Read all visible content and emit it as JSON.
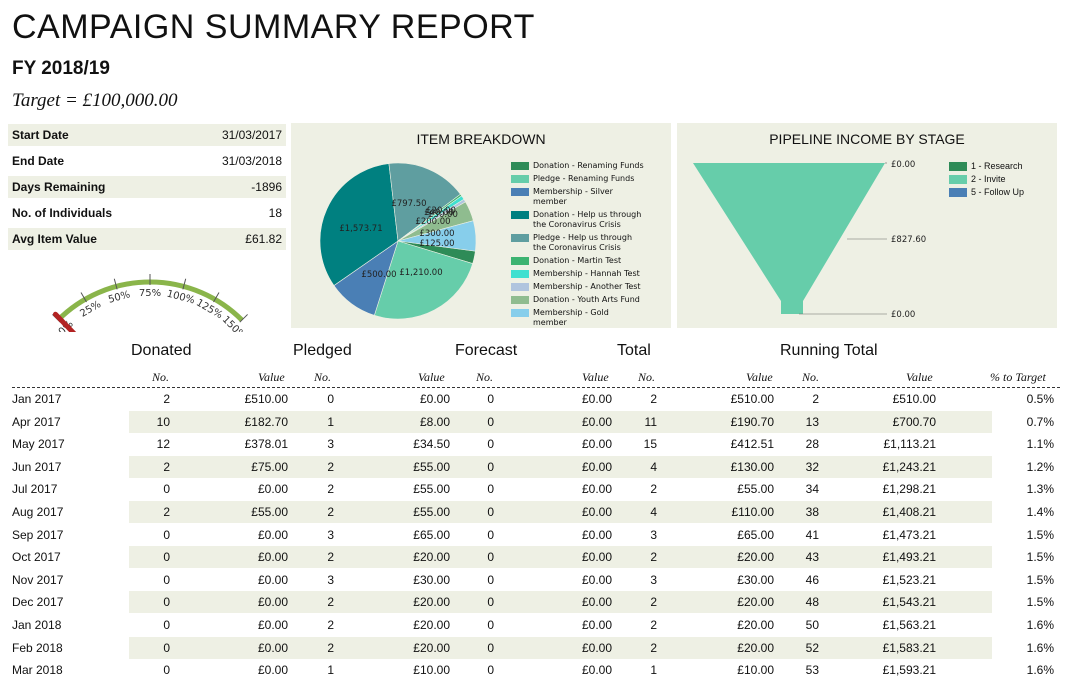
{
  "report": {
    "title": "CAMPAIGN SUMMARY REPORT",
    "fiscal_year": "FY 2018/19",
    "target": "Target = £100,000.00"
  },
  "stats": [
    {
      "label": "Start Date",
      "value": "31/03/2017"
    },
    {
      "label": "End Date",
      "value": "31/03/2018"
    },
    {
      "label": "Days Remaining",
      "value": "-1896"
    },
    {
      "label": "No. of Individuals",
      "value": "18"
    },
    {
      "label": "Avg Item Value",
      "value": "£61.82"
    }
  ],
  "gauge": {
    "ticks": [
      "0%",
      "25%",
      "50%",
      "75%",
      "100%",
      "125%",
      "150%"
    ],
    "value_percent": 1.6,
    "arc_color": "#8ab54a",
    "needle_color": "#b22222"
  },
  "item_breakdown": {
    "title": "ITEM BREAKDOWN",
    "chart_data": {
      "type": "pie",
      "slices": [
        {
          "label": "Donation - Renaming Funds",
          "value": 125.0,
          "color": "#2e8b57"
        },
        {
          "label": "Pledge - Renaming Funds",
          "value": 1210.0,
          "color": "#66cdaa"
        },
        {
          "label": "Membership - Silver member",
          "value": 500.0,
          "color": "#4a7fb5"
        },
        {
          "label": "Donation - Help us through the Coronavirus Crisis",
          "value": 1573.71,
          "color": "#008080"
        },
        {
          "label": "Pledge - Help us through the Coronavirus Crisis",
          "value": 797.5,
          "color": "#5f9ea0"
        },
        {
          "label": "Donation - Martin Test",
          "value": 20.0,
          "color": "#3cb371"
        },
        {
          "label": "Membership - Hannah Test",
          "value": 40.0,
          "color": "#40e0d0"
        },
        {
          "label": "Membership - Another Test",
          "value": 30.0,
          "color": "#b0c4de"
        },
        {
          "label": "Donation - Youth Arts Fund",
          "value": 200.0,
          "color": "#8fbc8f"
        },
        {
          "label": "Membership - Gold member",
          "value": 300.0,
          "color": "#87ceeb"
        }
      ],
      "data_labels": [
        "£1,573.71",
        "£797.50",
        "£40.00",
        "£20.00",
        "£30.00",
        "£200.00",
        "£300.00",
        "£125.00",
        "£1,210.00",
        "£500.00"
      ]
    }
  },
  "pipeline": {
    "title": "PIPELINE INCOME BY STAGE",
    "chart_data": {
      "type": "funnel",
      "stages": [
        {
          "label": "1 - Research",
          "value": 0.0,
          "display": "£0.00",
          "color": "#2e8b57"
        },
        {
          "label": "2 - Invite",
          "value": 827.6,
          "display": "£827.60",
          "color": "#66cdaa"
        },
        {
          "label": "5 - Follow Up",
          "value": 0.0,
          "display": "£0.00",
          "color": "#4a7fb5"
        }
      ]
    }
  },
  "table": {
    "groups": [
      "Donated",
      "Pledged",
      "Forecast",
      "Total",
      "Running Total"
    ],
    "subheaders": [
      "No.",
      "Value",
      "No.",
      "Value",
      "No.",
      "Value",
      "No.",
      "Value",
      "No.",
      "Value",
      "% to Target"
    ],
    "rows": [
      [
        "Jan 2017",
        "2",
        "£510.00",
        "0",
        "£0.00",
        "0",
        "£0.00",
        "2",
        "£510.00",
        "2",
        "£510.00",
        "0.5%"
      ],
      [
        "Apr 2017",
        "10",
        "£182.70",
        "1",
        "£8.00",
        "0",
        "£0.00",
        "11",
        "£190.70",
        "13",
        "£700.70",
        "0.7%"
      ],
      [
        "May 2017",
        "12",
        "£378.01",
        "3",
        "£34.50",
        "0",
        "£0.00",
        "15",
        "£412.51",
        "28",
        "£1,113.21",
        "1.1%"
      ],
      [
        "Jun 2017",
        "2",
        "£75.00",
        "2",
        "£55.00",
        "0",
        "£0.00",
        "4",
        "£130.00",
        "32",
        "£1,243.21",
        "1.2%"
      ],
      [
        "Jul 2017",
        "0",
        "£0.00",
        "2",
        "£55.00",
        "0",
        "£0.00",
        "2",
        "£55.00",
        "34",
        "£1,298.21",
        "1.3%"
      ],
      [
        "Aug 2017",
        "2",
        "£55.00",
        "2",
        "£55.00",
        "0",
        "£0.00",
        "4",
        "£110.00",
        "38",
        "£1,408.21",
        "1.4%"
      ],
      [
        "Sep 2017",
        "0",
        "£0.00",
        "3",
        "£65.00",
        "0",
        "£0.00",
        "3",
        "£65.00",
        "41",
        "£1,473.21",
        "1.5%"
      ],
      [
        "Oct 2017",
        "0",
        "£0.00",
        "2",
        "£20.00",
        "0",
        "£0.00",
        "2",
        "£20.00",
        "43",
        "£1,493.21",
        "1.5%"
      ],
      [
        "Nov 2017",
        "0",
        "£0.00",
        "3",
        "£30.00",
        "0",
        "£0.00",
        "3",
        "£30.00",
        "46",
        "£1,523.21",
        "1.5%"
      ],
      [
        "Dec 2017",
        "0",
        "£0.00",
        "2",
        "£20.00",
        "0",
        "£0.00",
        "2",
        "£20.00",
        "48",
        "£1,543.21",
        "1.5%"
      ],
      [
        "Jan 2018",
        "0",
        "£0.00",
        "2",
        "£20.00",
        "0",
        "£0.00",
        "2",
        "£20.00",
        "50",
        "£1,563.21",
        "1.6%"
      ],
      [
        "Feb 2018",
        "0",
        "£0.00",
        "2",
        "£20.00",
        "0",
        "£0.00",
        "2",
        "£20.00",
        "52",
        "£1,583.21",
        "1.6%"
      ],
      [
        "Mar 2018",
        "0",
        "£0.00",
        "1",
        "£10.00",
        "0",
        "£0.00",
        "1",
        "£10.00",
        "53",
        "£1,593.21",
        "1.6%"
      ]
    ]
  }
}
